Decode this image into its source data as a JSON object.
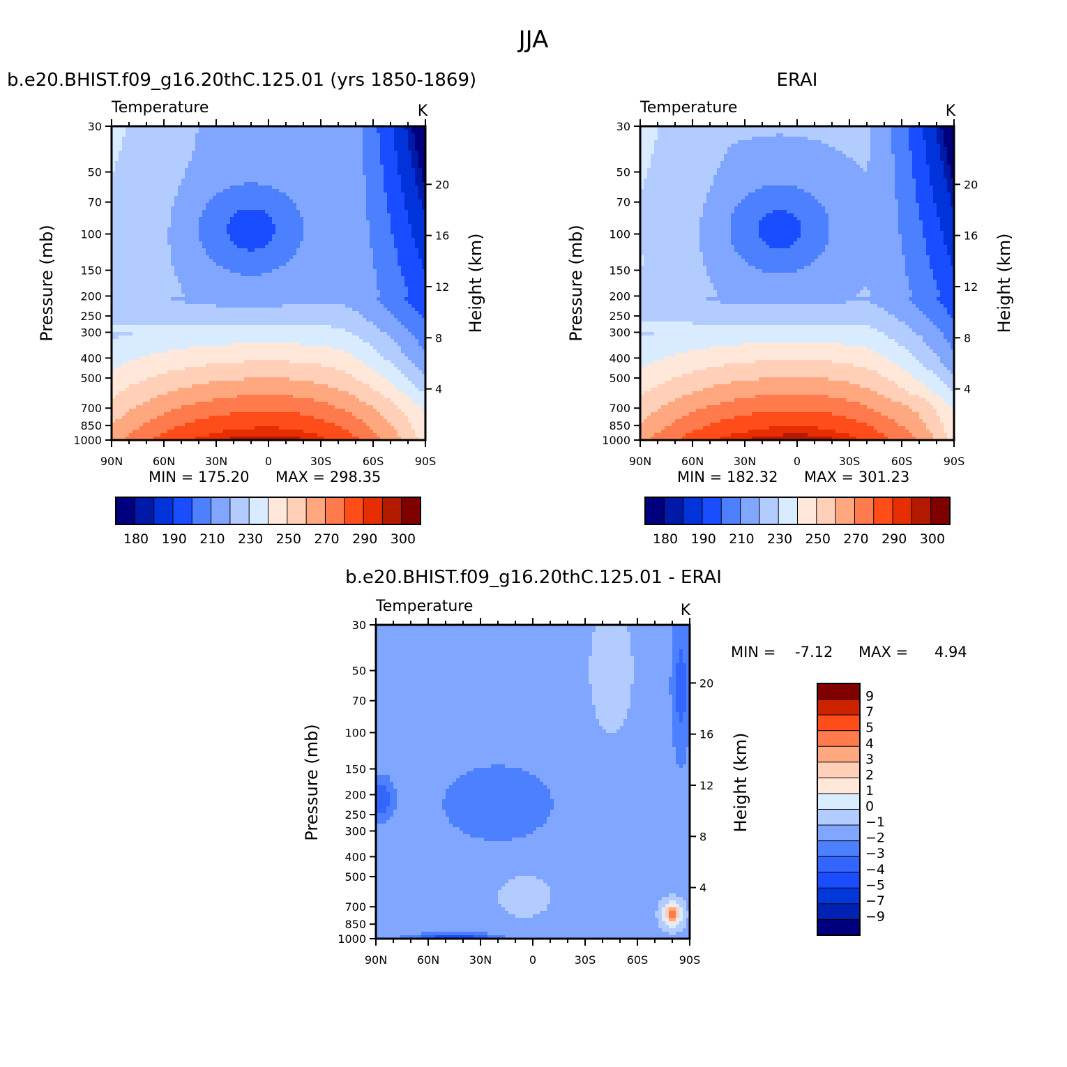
{
  "figure_title": "JJA",
  "palettes": {
    "abs": [
      "#00007f",
      "#001aa8",
      "#0033d9",
      "#1a4dff",
      "#4d80ff",
      "#80a6ff",
      "#b3ccff",
      "#d9ebff",
      "#ffe8d9",
      "#ffcfb8",
      "#ffa880",
      "#ff7a4d",
      "#ff4d1a",
      "#e62e00",
      "#b31a00",
      "#800000"
    ],
    "diff": [
      "#00007f",
      "#0022b3",
      "#0038d9",
      "#1a4dff",
      "#3366ff",
      "#4d80ff",
      "#80a6ff",
      "#b3ccff",
      "#d9ebff",
      "#ffe8d9",
      "#ffcfb8",
      "#ffa880",
      "#ff7a4d",
      "#ff4d1a",
      "#cc2200",
      "#800000"
    ]
  },
  "chart_data": [
    {
      "type": "heatmap",
      "panel_title": "b.e20.BHIST.f09_g16.20thC.125.01 (yrs 1850-1869)",
      "title": "Temperature",
      "units": "K",
      "xlabel": "",
      "ylabel": "Pressure (mb)",
      "ylabel_right": "Height (km)",
      "x_ticks": [
        "90N",
        "60N",
        "30N",
        "0",
        "30S",
        "60S",
        "90S"
      ],
      "y_ticks": [
        30,
        50,
        70,
        100,
        150,
        200,
        250,
        300,
        400,
        500,
        700,
        850,
        1000
      ],
      "y_right_ticks": [
        20,
        16,
        12,
        8,
        4
      ],
      "min_label": "MIN = 175.20",
      "max_label": "MAX = 298.35",
      "colorbar_labels": [
        "180",
        "190",
        "210",
        "230",
        "250",
        "270",
        "290",
        "300"
      ],
      "levels": [
        175,
        180,
        190,
        200,
        210,
        220,
        230,
        240,
        250,
        260,
        270,
        280,
        290,
        295,
        300
      ]
    },
    {
      "type": "heatmap",
      "panel_title": "ERAI",
      "title": "Temperature",
      "units": "K",
      "xlabel": "",
      "ylabel": "Pressure (mb)",
      "ylabel_right": "Height (km)",
      "x_ticks": [
        "90N",
        "60N",
        "30N",
        "0",
        "30S",
        "60S",
        "90S"
      ],
      "y_ticks": [
        30,
        50,
        70,
        100,
        150,
        200,
        250,
        300,
        400,
        500,
        700,
        850,
        1000
      ],
      "y_right_ticks": [
        20,
        16,
        12,
        8,
        4
      ],
      "min_label": "MIN = 182.32",
      "max_label": "MAX = 301.23",
      "colorbar_labels": [
        "180",
        "190",
        "210",
        "230",
        "250",
        "270",
        "290",
        "300"
      ],
      "levels": [
        175,
        180,
        190,
        200,
        210,
        220,
        230,
        240,
        250,
        260,
        270,
        280,
        290,
        295,
        300
      ]
    },
    {
      "type": "heatmap",
      "panel_title": "b.e20.BHIST.f09_g16.20thC.125.01 - ERAI",
      "title": "Temperature",
      "units": "K",
      "xlabel": "",
      "ylabel": "Pressure (mb)",
      "ylabel_right": "Height (km)",
      "x_ticks": [
        "90N",
        "60N",
        "30N",
        "0",
        "30S",
        "60S",
        "90S"
      ],
      "y_ticks": [
        30,
        50,
        70,
        100,
        150,
        200,
        250,
        300,
        400,
        500,
        700,
        850,
        1000
      ],
      "y_right_ticks": [
        20,
        16,
        12,
        8,
        4
      ],
      "min_label": "MIN =",
      "min_value": "-7.12",
      "max_label": "MAX =",
      "max_value": "4.94",
      "colorbar_labels": [
        "9",
        "7",
        "5",
        "4",
        "3",
        "2",
        "1",
        "0",
        "-1",
        "-2",
        "-3",
        "-4",
        "-5",
        "-7",
        "-9"
      ],
      "levels": [
        -9,
        -7,
        -5,
        -4,
        -3,
        -2,
        -1,
        0,
        1,
        2,
        3,
        4,
        5,
        7,
        9
      ]
    }
  ]
}
